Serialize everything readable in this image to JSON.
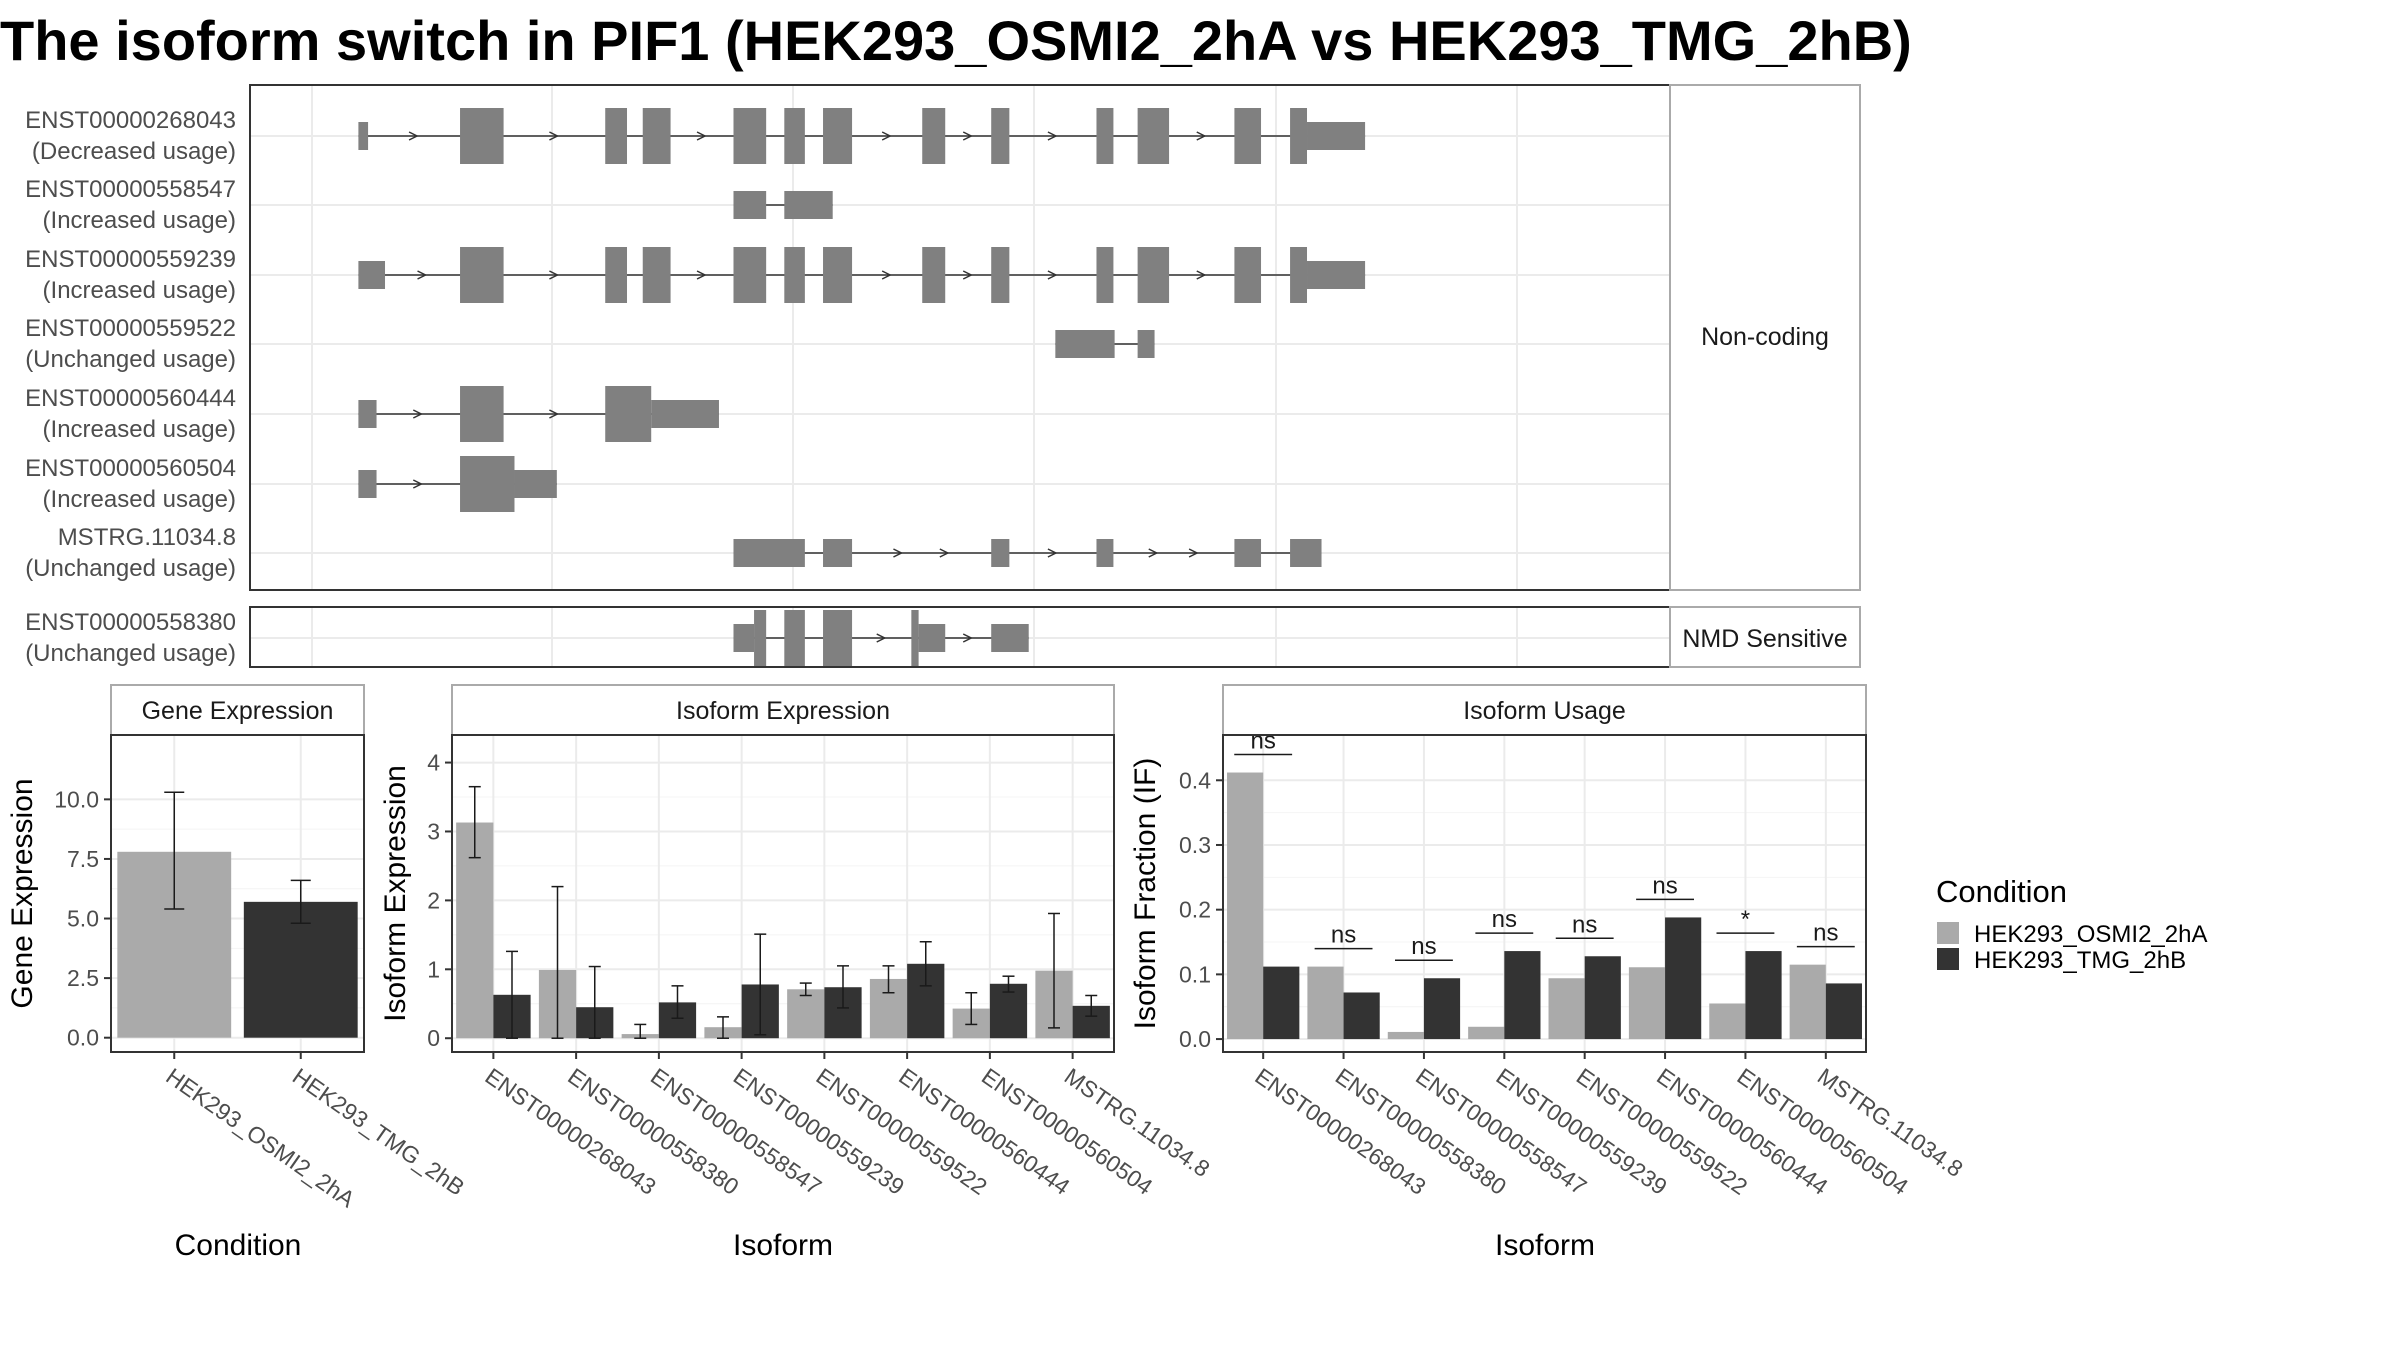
{
  "title": "The isoform switch in PIF1 (HEK293_OSMI2_2hA vs HEK293_TMG_2hB)",
  "colors": {
    "cond1": "#aaaaaa",
    "cond2": "#333333",
    "exon": "#808080",
    "grid": "#ebebeb",
    "panel_border": "#333333",
    "strip_border": "#aaaaaa"
  },
  "chart_data": [
    {
      "type": "gene-structure",
      "facet_labels": [
        "Non-coding",
        "NMD Sensitive"
      ],
      "coordinate_range": [
        0,
        1124
      ],
      "transcripts": [
        {
          "id": "ENST00000268043",
          "usage": "(Decreased usage)",
          "facet": "Non-coding",
          "exons": [
            [
              40,
              48,
              "thin"
            ],
            [
              124,
              160,
              "thick"
            ],
            [
              244,
              262,
              "thick"
            ],
            [
              275,
              298,
              "thick"
            ],
            [
              350,
              377,
              "thick"
            ],
            [
              392,
              409,
              "thick"
            ],
            [
              424,
              448,
              "thick"
            ],
            [
              506,
              525,
              "thick"
            ],
            [
              563,
              578,
              "thick"
            ],
            [
              650,
              664,
              "thick"
            ],
            [
              684,
              710,
              "thick"
            ],
            [
              764,
              786,
              "thick"
            ],
            [
              810,
              824,
              "thick"
            ],
            [
              824,
              872,
              "thin"
            ]
          ]
        },
        {
          "id": "ENST00000558547",
          "usage": "(Increased usage)",
          "facet": "Non-coding",
          "exons": [
            [
              350,
              377,
              "thin"
            ],
            [
              392,
              432,
              "thin"
            ]
          ]
        },
        {
          "id": "ENST00000559239",
          "usage": "(Increased usage)",
          "facet": "Non-coding",
          "exons": [
            [
              40,
              62,
              "thin"
            ],
            [
              124,
              160,
              "thick"
            ],
            [
              244,
              262,
              "thick"
            ],
            [
              275,
              298,
              "thick"
            ],
            [
              350,
              377,
              "thick"
            ],
            [
              392,
              409,
              "thick"
            ],
            [
              424,
              448,
              "thick"
            ],
            [
              506,
              525,
              "thick"
            ],
            [
              563,
              578,
              "thick"
            ],
            [
              650,
              664,
              "thick"
            ],
            [
              684,
              710,
              "thick"
            ],
            [
              764,
              786,
              "thick"
            ],
            [
              810,
              824,
              "thick"
            ],
            [
              824,
              872,
              "thin"
            ]
          ]
        },
        {
          "id": "ENST00000559522",
          "usage": "(Unchanged usage)",
          "facet": "Non-coding",
          "exons": [
            [
              616,
              665,
              "thin"
            ],
            [
              684,
              698,
              "thin"
            ]
          ]
        },
        {
          "id": "ENST00000560444",
          "usage": "(Increased usage)",
          "facet": "Non-coding",
          "exons": [
            [
              40,
              55,
              "thin"
            ],
            [
              124,
              160,
              "thick"
            ],
            [
              244,
              282,
              "thick"
            ],
            [
              282,
              338,
              "thin"
            ]
          ]
        },
        {
          "id": "ENST00000560504",
          "usage": "(Increased usage)",
          "facet": "Non-coding",
          "exons": [
            [
              40,
              55,
              "thin"
            ],
            [
              124,
              169,
              "thick"
            ],
            [
              169,
              204,
              "thin"
            ]
          ]
        },
        {
          "id": "MSTRG.11034.8",
          "usage": "(Unchanged usage)",
          "facet": "Non-coding",
          "exons": [
            [
              350,
              409,
              "thin"
            ],
            [
              424,
              448,
              "thin"
            ],
            [
              563,
              578,
              "thin"
            ],
            [
              650,
              664,
              "thin"
            ],
            [
              764,
              786,
              "thin"
            ],
            [
              810,
              836,
              "thin"
            ]
          ]
        },
        {
          "id": "ENST00000558380",
          "usage": "(Unchanged usage)",
          "facet": "NMD Sensitive",
          "exons": [
            [
              350,
              367,
              "thin"
            ],
            [
              367,
              377,
              "thick"
            ],
            [
              392,
              409,
              "thick"
            ],
            [
              424,
              448,
              "thick"
            ],
            [
              497,
              503,
              "thick"
            ],
            [
              503,
              525,
              "thin"
            ],
            [
              563,
              594,
              "thin"
            ]
          ]
        }
      ]
    },
    {
      "type": "bar",
      "title": "Gene Expression",
      "xlabel": "Condition",
      "ylabel": "Gene Expression",
      "ylim": [
        -0.6,
        12.7
      ],
      "yticks": [
        "0.0",
        "2.5",
        "5.0",
        "7.5",
        "10.0"
      ],
      "categories": [
        "HEK293_OSMI2_2hA",
        "HEK293_TMG_2hB"
      ],
      "values": [
        7.8,
        5.7
      ],
      "err_low": [
        5.4,
        4.8
      ],
      "err_high": [
        10.3,
        6.6
      ]
    },
    {
      "type": "bar",
      "title": "Isoform Expression",
      "xlabel": "Isoform",
      "ylabel": "Isoform Expression",
      "ylim": [
        -0.2,
        4.4
      ],
      "yticks": [
        "0",
        "1",
        "2",
        "3",
        "4"
      ],
      "categories": [
        "ENST00000268043",
        "ENST00000558380",
        "ENST00000558547",
        "ENST00000559239",
        "ENST00000559522",
        "ENST00000560444",
        "ENST00000560504",
        "MSTRG.11034.8"
      ],
      "series": [
        {
          "name": "HEK293_OSMI2_2hA",
          "values": [
            3.13,
            0.99,
            0.06,
            0.16,
            0.71,
            0.86,
            0.43,
            0.98
          ],
          "err_low": [
            2.62,
            0.0,
            0.0,
            0.0,
            0.62,
            0.66,
            0.2,
            0.15
          ],
          "err_high": [
            3.65,
            2.2,
            0.2,
            0.31,
            0.8,
            1.05,
            0.66,
            1.81
          ]
        },
        {
          "name": "HEK293_TMG_2hB",
          "values": [
            0.63,
            0.45,
            0.52,
            0.78,
            0.74,
            1.08,
            0.79,
            0.47
          ],
          "err_low": [
            0.0,
            0.0,
            0.29,
            0.05,
            0.44,
            0.76,
            0.67,
            0.32
          ],
          "err_high": [
            1.26,
            1.04,
            0.76,
            1.51,
            1.05,
            1.4,
            0.9,
            0.62
          ]
        }
      ]
    },
    {
      "type": "bar",
      "title": "Isoform Usage",
      "xlabel": "Isoform",
      "ylabel": "Isoform Fraction (IF)",
      "ylim": [
        -0.02,
        0.47
      ],
      "yticks": [
        "0.0",
        "0.1",
        "0.2",
        "0.3",
        "0.4"
      ],
      "categories": [
        "ENST00000268043",
        "ENST00000558380",
        "ENST00000558547",
        "ENST00000559239",
        "ENST00000559522",
        "ENST00000560444",
        "ENST00000560504",
        "MSTRG.11034.8"
      ],
      "series": [
        {
          "name": "HEK293_OSMI2_2hA",
          "values": [
            0.412,
            0.112,
            0.011,
            0.019,
            0.094,
            0.111,
            0.055,
            0.115
          ]
        },
        {
          "name": "HEK293_TMG_2hB",
          "values": [
            0.112,
            0.072,
            0.094,
            0.136,
            0.128,
            0.188,
            0.136,
            0.086
          ]
        }
      ],
      "significance": [
        "ns",
        "ns",
        "ns",
        "ns",
        "ns",
        "ns",
        "*",
        "ns"
      ]
    }
  ],
  "legend": {
    "title": "Condition",
    "entries": [
      "HEK293_OSMI2_2hA",
      "HEK293_TMG_2hB"
    ]
  }
}
